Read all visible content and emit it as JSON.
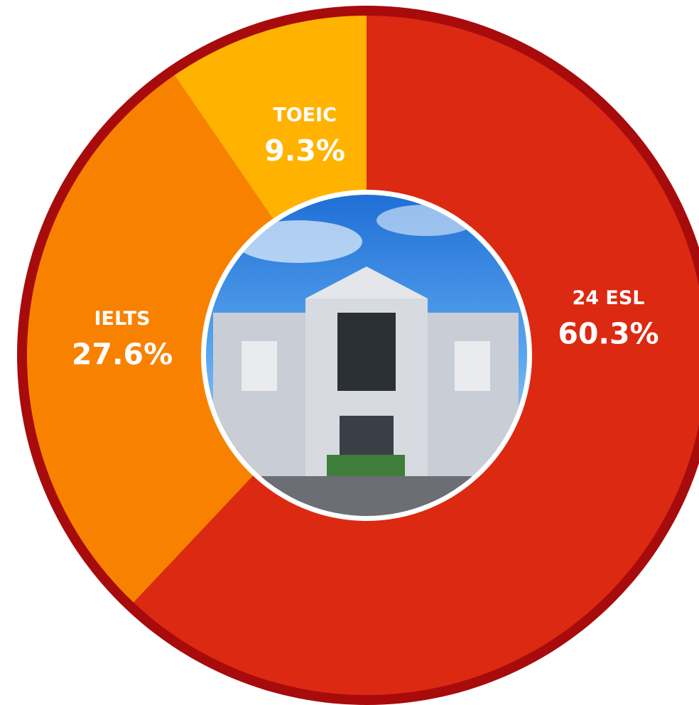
{
  "chart_data": {
    "type": "pie",
    "categories": [
      "24 ESL",
      "IELTS",
      "TOEIC"
    ],
    "values": [
      60.3,
      27.6,
      9.3
    ],
    "value_labels": [
      "60.3%",
      "27.6%",
      "9.3%"
    ],
    "colors": [
      "#dc2912",
      "#f88200",
      "#ffb300"
    ],
    "ring_color": "#a80b0b"
  }
}
